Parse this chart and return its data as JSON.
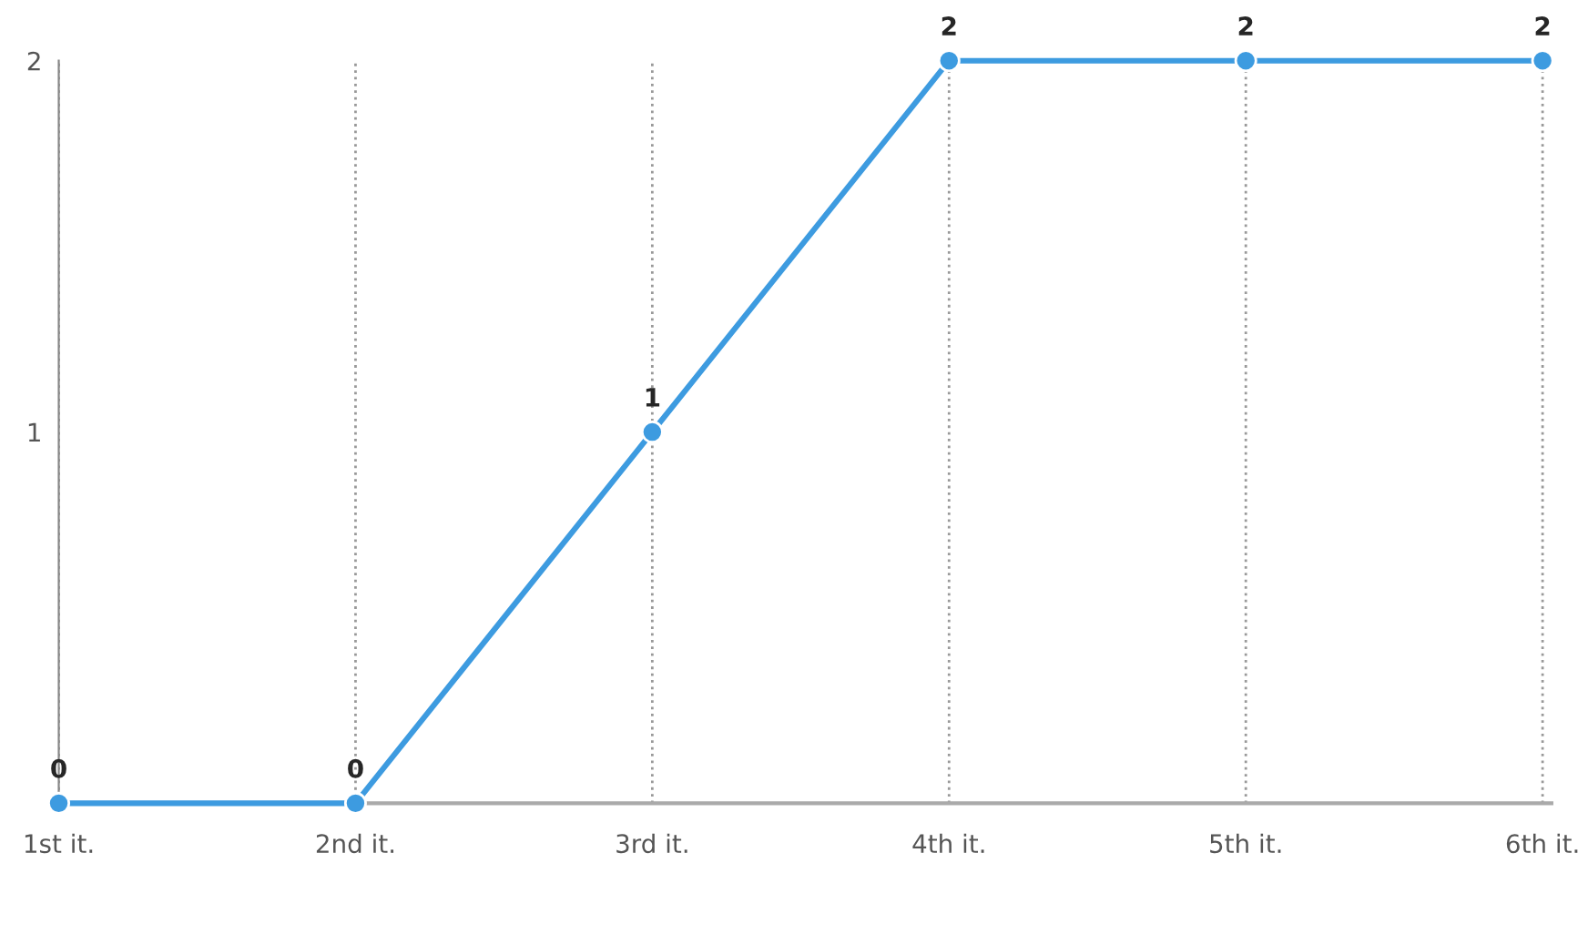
{
  "chart_data": {
    "type": "line",
    "categories": [
      "1st it.",
      "2nd it.",
      "3rd it.",
      "4th it.",
      "5th it.",
      "6th it."
    ],
    "series": [
      {
        "color": "#3d9be0",
        "values": [
          0,
          0,
          1,
          2,
          2,
          2
        ]
      }
    ],
    "ylim": [
      0,
      2
    ],
    "yticks": [
      1,
      2
    ],
    "grid": "x",
    "marker": "circle",
    "line_style": "solid",
    "data_labels": true
  }
}
